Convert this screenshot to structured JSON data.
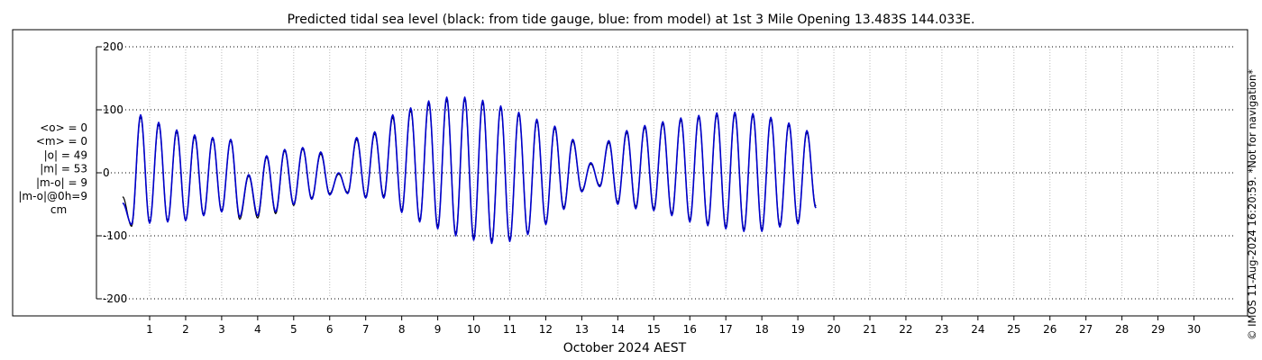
{
  "chart_data": {
    "type": "line",
    "title": "Predicted tidal sea level (black: from tide gauge, blue: from model) at 1st 3 Mile Opening 13.483S 144.033E.",
    "xlabel": "October 2024 AEST",
    "ylabel": "",
    "ylim": [
      -230,
      200
    ],
    "yticks": [
      -200,
      -100,
      0,
      100,
      200
    ],
    "ytick_labels": [
      "-200",
      "-100",
      "0",
      "100",
      "200"
    ],
    "xlim": [
      0.25,
      31.2
    ],
    "xticks": [
      1,
      2,
      3,
      4,
      5,
      6,
      7,
      8,
      9,
      10,
      11,
      12,
      13,
      14,
      15,
      16,
      17,
      18,
      19,
      20,
      21,
      22,
      23,
      24,
      25,
      26,
      27,
      28,
      29,
      30
    ],
    "xtick_labels": [
      "1",
      "2",
      "3",
      "4",
      "5",
      "6",
      "7",
      "8",
      "9",
      "10",
      "11",
      "12",
      "13",
      "14",
      "15",
      "16",
      "17",
      "18",
      "19",
      "20",
      "21",
      "22",
      "23",
      "24",
      "25",
      "26",
      "27",
      "28",
      "29",
      "30"
    ],
    "grid": true,
    "stats": [
      "<o> = 0",
      "<m> = 0",
      "|o| = 49",
      "|m| = 53",
      "|m-o| = 9",
      "|m-o|@0h=9",
      "cm"
    ],
    "copyright": "© IMOS 11-Aug-2024 16:20:59. *Not for navigation*",
    "series": [
      {
        "color": "#000000",
        "step_days": 0.25,
        "values": [
          -38,
          -85,
          89,
          -78,
          77,
          -76,
          65,
          -76,
          57,
          -66,
          54,
          -60,
          51,
          -74,
          -5,
          -72,
          25,
          -65,
          35,
          -52,
          38,
          -40,
          30,
          -33,
          -2,
          -31,
          53,
          -38,
          62,
          -37,
          88,
          -60,
          99,
          -75,
          110,
          -85,
          116,
          -97,
          117,
          -103,
          112,
          -108,
          103,
          -106,
          93,
          -96,
          82,
          -80,
          71,
          -55,
          50,
          -28,
          14,
          -20,
          48,
          -47,
          64,
          -54,
          72,
          -57,
          78,
          -65,
          84,
          -75,
          88,
          -81,
          92,
          -86,
          93,
          -90,
          91,
          -90,
          85,
          -83,
          76,
          -78,
          64,
          -53
        ]
      },
      {
        "color": "#0000cc",
        "step_days": 0.25,
        "values": [
          -48,
          -82,
          92,
          -80,
          80,
          -78,
          68,
          -76,
          60,
          -68,
          56,
          -62,
          53,
          -70,
          -3,
          -68,
          27,
          -62,
          37,
          -50,
          40,
          -42,
          33,
          -35,
          0,
          -33,
          56,
          -40,
          65,
          -40,
          92,
          -63,
          103,
          -78,
          114,
          -89,
          120,
          -100,
          120,
          -107,
          115,
          -112,
          106,
          -109,
          96,
          -98,
          85,
          -82,
          74,
          -58,
          53,
          -30,
          16,
          -22,
          51,
          -50,
          67,
          -57,
          75,
          -60,
          81,
          -68,
          87,
          -78,
          91,
          -84,
          95,
          -89,
          96,
          -93,
          94,
          -93,
          88,
          -86,
          79,
          -81,
          67,
          -56
        ]
      }
    ]
  }
}
